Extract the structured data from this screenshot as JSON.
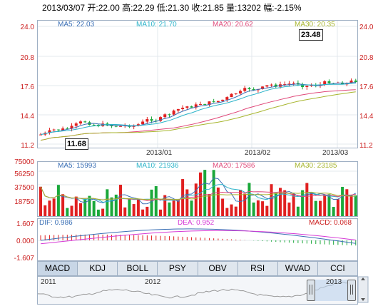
{
  "header": {
    "info_line": "2013/03/07 开:22.00 高:22.29 低:21.30 收:21.85 量:13202 幅:-2.15%"
  },
  "price_panel": {
    "ma_labels": [
      {
        "text": "MA5: 22.03",
        "color": "#3a6fb5"
      },
      {
        "text": "MA10: 21.70",
        "color": "#2bb3c9"
      },
      {
        "text": "MA20: 20.62",
        "color": "#e0497a"
      },
      {
        "text": "MA30: 20.35",
        "color": "#a7b52d"
      }
    ],
    "y_ticks": [
      "24.0",
      "20.8",
      "17.6",
      "14.4",
      "11.2"
    ],
    "x_ticks": [
      "2013/01",
      "2013/02",
      "2013/03"
    ],
    "high_callout": "23.48",
    "low_callout": "11.68"
  },
  "volume_panel": {
    "ma_labels": [
      {
        "text": "MA5: 15993",
        "color": "#3a6fb5"
      },
      {
        "text": "MA10: 21936",
        "color": "#2bb3c9"
      },
      {
        "text": "MA20: 17586",
        "color": "#e0497a"
      },
      {
        "text": "MA30: 23185",
        "color": "#a7b52d"
      }
    ],
    "y_ticks": [
      "75000",
      "56250",
      "37500",
      "18750"
    ]
  },
  "macd_panel": {
    "labels": [
      {
        "text": "DIF: 0.986",
        "color": "#3a6fb5"
      },
      {
        "text": "DEA: 0.952",
        "color": "#d63ad6"
      },
      {
        "text": "MACD: 0.068",
        "color": "#cc1f1f"
      }
    ],
    "y_ticks": [
      "1.607",
      "0.000",
      "-1.607"
    ]
  },
  "tabs": [
    "MACD",
    "KDJ",
    "BOLL",
    "PSY",
    "OBV",
    "RSI",
    "WVAD",
    "CCI"
  ],
  "active_tab": "MACD",
  "range_nav": {
    "labels": [
      "2011",
      "2012",
      "2013"
    ]
  },
  "colors": {
    "up": "#e02020",
    "down": "#1aa83a",
    "axis": "#cc1f1f",
    "border": "#9fb0c4"
  }
}
